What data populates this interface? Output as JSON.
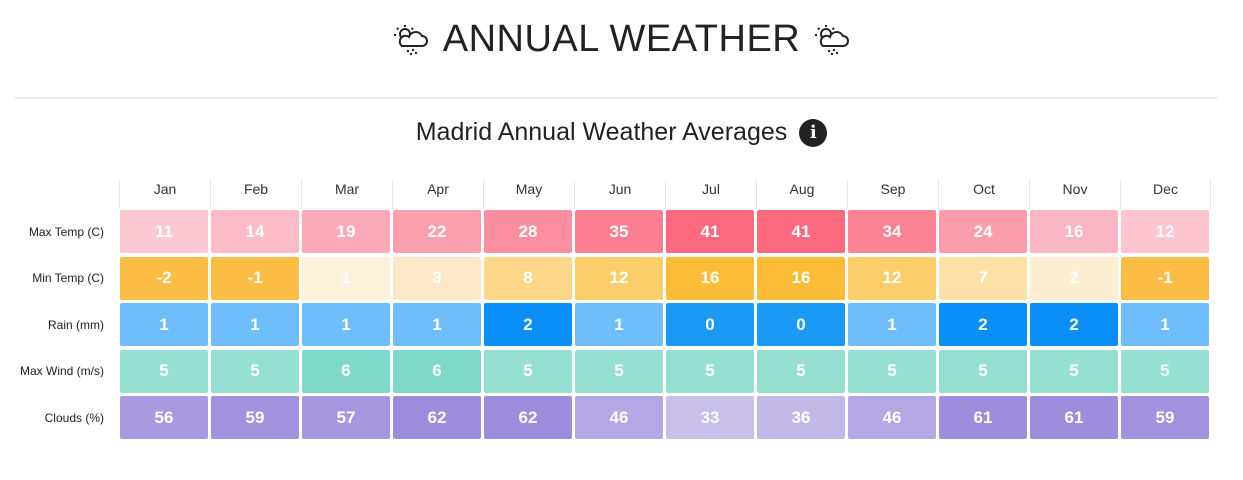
{
  "header": {
    "title": "ANNUAL WEATHER",
    "icon": "cloud-sun-rain-icon"
  },
  "subtitle": "Madrid Annual Weather Averages",
  "info_icon": "i",
  "months": [
    "Jan",
    "Feb",
    "Mar",
    "Apr",
    "May",
    "Jun",
    "Jul",
    "Aug",
    "Sep",
    "Oct",
    "Nov",
    "Dec"
  ],
  "rows": [
    {
      "label": "Max Temp (C)",
      "values": [
        "11",
        "14",
        "19",
        "22",
        "28",
        "35",
        "41",
        "41",
        "34",
        "24",
        "16",
        "12"
      ],
      "colors": [
        "#fcc8d4",
        "#fbbcc8",
        "#fbaab8",
        "#fb9fad",
        "#fc8f9f",
        "#fd7f92",
        "#fd6a80",
        "#fd6a80",
        "#fc8294",
        "#fb9dab",
        "#fbb6c3",
        "#fcc5d0"
      ]
    },
    {
      "label": "Min Temp (C)",
      "values": [
        "-2",
        "-1",
        "1",
        "3",
        "8",
        "12",
        "16",
        "16",
        "12",
        "7",
        "2",
        "-1"
      ],
      "colors": [
        "#fbbd44",
        "#fbbd44",
        "#fdf1dc",
        "#fde9c7",
        "#fdd88b",
        "#fccd6b",
        "#fbbd38",
        "#fbbd38",
        "#fccd6b",
        "#fde0a6",
        "#fdeed3",
        "#fbbd44"
      ]
    },
    {
      "label": "Rain (mm)",
      "values": [
        "1",
        "1",
        "1",
        "1",
        "2",
        "1",
        "0",
        "0",
        "1",
        "2",
        "2",
        "1"
      ],
      "colors": [
        "#6ebefc",
        "#6ebefc",
        "#6ebefc",
        "#6ebefc",
        "#0a8ff9",
        "#6ebefc",
        "#1a99f5",
        "#1a99f5",
        "#6ebefc",
        "#0a8ff9",
        "#0a8ff9",
        "#6ebefc"
      ]
    },
    {
      "label": "Max Wind (m/s)",
      "values": [
        "5",
        "5",
        "6",
        "6",
        "5",
        "5",
        "5",
        "5",
        "5",
        "5",
        "5",
        "5"
      ],
      "colors": [
        "#96e0d2",
        "#96e0d2",
        "#7fd9c8",
        "#7fd9c8",
        "#96e0d2",
        "#96e0d2",
        "#96e0d2",
        "#96e0d2",
        "#96e0d2",
        "#96e0d2",
        "#96e0d2",
        "#96e0d2"
      ]
    },
    {
      "label": "Clouds (%)",
      "values": [
        "56",
        "59",
        "57",
        "62",
        "62",
        "46",
        "33",
        "36",
        "46",
        "61",
        "61",
        "59"
      ],
      "colors": [
        "#a899e0",
        "#a291de",
        "#a596df",
        "#9d8bdc",
        "#9d8bdc",
        "#b3a7e4",
        "#c8bfea",
        "#c2b8e8",
        "#b3a7e4",
        "#9e8cdc",
        "#9e8cdc",
        "#a291de"
      ]
    }
  ]
}
